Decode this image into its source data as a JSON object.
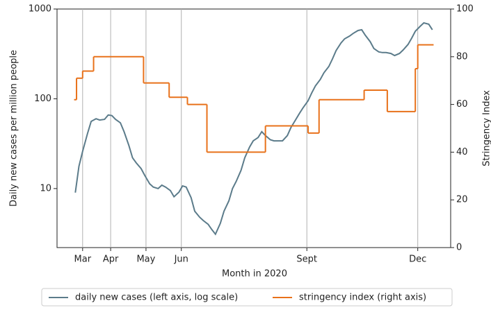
{
  "chart_data": {
    "type": "line",
    "xlabel": "Month in 2020",
    "ylabel": "Daily new cases per million people",
    "y2label": "Stringency Index",
    "xlim": [
      40,
      363
    ],
    "xticks": [
      {
        "value": 61,
        "label": "Mar"
      },
      {
        "value": 84,
        "label": "Apr"
      },
      {
        "value": 113,
        "label": "May"
      },
      {
        "value": 142,
        "label": "Jun"
      },
      {
        "value": 245,
        "label": "Sept"
      },
      {
        "value": 336,
        "label": "Dec"
      }
    ],
    "ylim": [
      2.2,
      1000
    ],
    "yscale": "log",
    "yticks": [
      10,
      100,
      1000
    ],
    "y2lim": [
      0,
      100
    ],
    "y2ticks": [
      0,
      20,
      40,
      60,
      80,
      100
    ],
    "grid": "x",
    "legend": "bottom",
    "series": [
      {
        "name": "daily new cases (left axis, log scale)",
        "color": "#5b7b8a",
        "x": [
          55,
          58,
          61,
          65,
          68,
          72,
          75,
          79,
          82,
          85,
          88,
          92,
          95,
          99,
          102,
          105,
          109,
          112,
          116,
          119,
          123,
          126,
          129,
          133,
          136,
          140,
          143,
          146,
          150,
          153,
          157,
          160,
          164,
          167,
          170,
          174,
          177,
          181,
          184,
          187,
          191,
          194,
          198,
          201,
          205,
          208,
          211,
          215,
          218,
          222,
          225,
          229,
          232,
          235,
          239,
          242,
          246,
          249,
          252,
          256,
          259,
          263,
          266,
          269,
          273,
          276,
          280,
          283,
          287,
          290,
          293,
          297,
          300,
          304,
          307,
          310,
          314,
          317,
          321,
          324,
          328,
          331,
          334,
          338,
          341,
          345,
          348
        ],
        "values": [
          9,
          17.7,
          26,
          41,
          56,
          60,
          58,
          59,
          66,
          65,
          59,
          54,
          43,
          30,
          22,
          19.3,
          16.7,
          14,
          11.3,
          10.4,
          10,
          10.9,
          10.4,
          9.5,
          8.1,
          9.1,
          10.7,
          10.4,
          7.9,
          5.6,
          4.8,
          4.4,
          4,
          3.5,
          3.1,
          4.1,
          5.6,
          7.3,
          10,
          12,
          16,
          22,
          29,
          34,
          37,
          43,
          39,
          35,
          34,
          34,
          34,
          39,
          48,
          56,
          69,
          80,
          95,
          116,
          139,
          164,
          195,
          229,
          278,
          345,
          418,
          465,
          500,
          535,
          576,
          587,
          510,
          433,
          363,
          333,
          327,
          327,
          320,
          303,
          320,
          350,
          403,
          473,
          566,
          642,
          701,
          677,
          587
        ]
      },
      {
        "name": "stringency index (right axis)",
        "color": "#e8711a",
        "axis": "y2",
        "step": "post",
        "x": [
          54,
          56,
          61,
          70,
          111,
          132,
          147,
          163,
          211,
          246,
          255,
          292,
          311,
          334,
          336,
          349
        ],
        "values": [
          62,
          71,
          74,
          80,
          69,
          63,
          60,
          40,
          51,
          48,
          62,
          66,
          57,
          75,
          85,
          85
        ]
      }
    ]
  }
}
